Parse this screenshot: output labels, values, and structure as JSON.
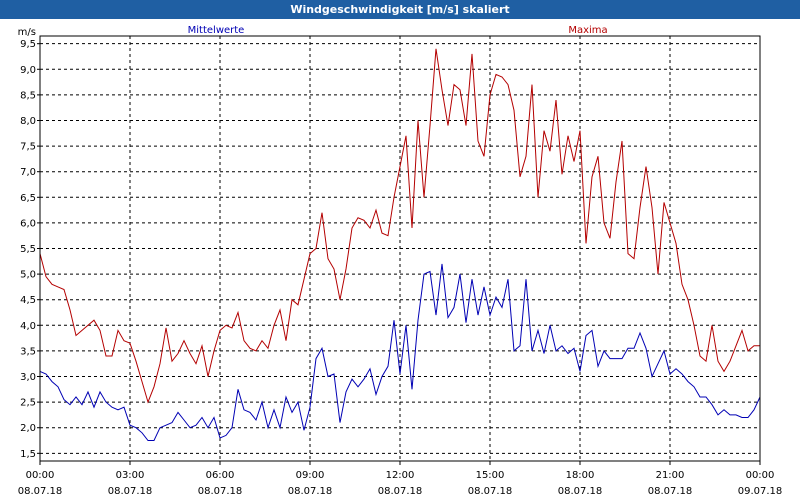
{
  "window": {
    "title": "Windgeschwindigkeit [m/s] skaliert"
  },
  "chart_data": {
    "type": "line",
    "title": "Windgeschwindigkeit [m/s] skaliert",
    "ylabel": "m/s",
    "xlabel": "",
    "ylim": [
      1.35,
      9.65
    ],
    "yticks": [
      "1,5",
      "2,0",
      "2,5",
      "3,0",
      "3,5",
      "4,0",
      "4,5",
      "5,0",
      "5,5",
      "6,0",
      "6,5",
      "7,0",
      "7,5",
      "8,0",
      "8,5",
      "9,0",
      "9,5"
    ],
    "xlim_hours": [
      0,
      24
    ],
    "xticks": [
      {
        "time": "00:00",
        "date": "08.07.18"
      },
      {
        "time": "03:00",
        "date": "08.07.18"
      },
      {
        "time": "06:00",
        "date": "08.07.18"
      },
      {
        "time": "09:00",
        "date": "08.07.18"
      },
      {
        "time": "12:00",
        "date": "08.07.18"
      },
      {
        "time": "15:00",
        "date": "08.07.18"
      },
      {
        "time": "18:00",
        "date": "08.07.18"
      },
      {
        "time": "21:00",
        "date": "08.07.18"
      },
      {
        "time": "00:00",
        "date": "09.07.18"
      }
    ],
    "grid": true,
    "legend": "top",
    "series": [
      {
        "name": "Mittelwerte",
        "color": "#0000b4",
        "points": [
          [
            0.0,
            3.1
          ],
          [
            0.2,
            3.05
          ],
          [
            0.4,
            2.9
          ],
          [
            0.6,
            2.8
          ],
          [
            0.8,
            2.55
          ],
          [
            1.0,
            2.45
          ],
          [
            1.2,
            2.6
          ],
          [
            1.4,
            2.45
          ],
          [
            1.6,
            2.7
          ],
          [
            1.8,
            2.4
          ],
          [
            2.0,
            2.7
          ],
          [
            2.2,
            2.5
          ],
          [
            2.4,
            2.4
          ],
          [
            2.6,
            2.35
          ],
          [
            2.8,
            2.4
          ],
          [
            3.0,
            2.05
          ],
          [
            3.2,
            2.0
          ],
          [
            3.4,
            1.9
          ],
          [
            3.6,
            1.75
          ],
          [
            3.8,
            1.75
          ],
          [
            4.0,
            2.0
          ],
          [
            4.2,
            2.05
          ],
          [
            4.4,
            2.1
          ],
          [
            4.6,
            2.3
          ],
          [
            4.8,
            2.15
          ],
          [
            5.0,
            2.0
          ],
          [
            5.2,
            2.05
          ],
          [
            5.4,
            2.2
          ],
          [
            5.6,
            2.0
          ],
          [
            5.8,
            2.2
          ],
          [
            6.0,
            1.8
          ],
          [
            6.2,
            1.85
          ],
          [
            6.4,
            2.0
          ],
          [
            6.6,
            2.75
          ],
          [
            6.8,
            2.35
          ],
          [
            7.0,
            2.3
          ],
          [
            7.2,
            2.15
          ],
          [
            7.4,
            2.5
          ],
          [
            7.6,
            2.0
          ],
          [
            7.8,
            2.35
          ],
          [
            8.0,
            2.0
          ],
          [
            8.2,
            2.6
          ],
          [
            8.4,
            2.3
          ],
          [
            8.6,
            2.5
          ],
          [
            8.8,
            1.95
          ],
          [
            9.0,
            2.4
          ],
          [
            9.2,
            3.35
          ],
          [
            9.4,
            3.55
          ],
          [
            9.6,
            3.0
          ],
          [
            9.8,
            3.05
          ],
          [
            10.0,
            2.1
          ],
          [
            10.2,
            2.7
          ],
          [
            10.4,
            2.95
          ],
          [
            10.6,
            2.8
          ],
          [
            10.8,
            2.95
          ],
          [
            11.0,
            3.15
          ],
          [
            11.2,
            2.65
          ],
          [
            11.4,
            3.0
          ],
          [
            11.6,
            3.2
          ],
          [
            11.8,
            4.1
          ],
          [
            12.0,
            3.05
          ],
          [
            12.2,
            4.0
          ],
          [
            12.4,
            2.75
          ],
          [
            12.6,
            4.1
          ],
          [
            12.8,
            5.0
          ],
          [
            13.0,
            5.05
          ],
          [
            13.2,
            4.2
          ],
          [
            13.4,
            5.2
          ],
          [
            13.6,
            4.15
          ],
          [
            13.8,
            4.35
          ],
          [
            14.0,
            5.0
          ],
          [
            14.2,
            4.05
          ],
          [
            14.4,
            4.9
          ],
          [
            14.6,
            4.2
          ],
          [
            14.8,
            4.75
          ],
          [
            15.0,
            4.2
          ],
          [
            15.2,
            4.55
          ],
          [
            15.4,
            4.35
          ],
          [
            15.6,
            4.9
          ],
          [
            15.8,
            3.5
          ],
          [
            16.0,
            3.6
          ],
          [
            16.2,
            4.9
          ],
          [
            16.4,
            3.5
          ],
          [
            16.6,
            3.9
          ],
          [
            16.8,
            3.45
          ],
          [
            17.0,
            4.0
          ],
          [
            17.2,
            3.5
          ],
          [
            17.4,
            3.6
          ],
          [
            17.6,
            3.45
          ],
          [
            17.8,
            3.55
          ],
          [
            18.0,
            3.1
          ],
          [
            18.2,
            3.8
          ],
          [
            18.4,
            3.9
          ],
          [
            18.6,
            3.2
          ],
          [
            18.8,
            3.5
          ],
          [
            19.0,
            3.35
          ],
          [
            19.2,
            3.35
          ],
          [
            19.4,
            3.35
          ],
          [
            19.6,
            3.55
          ],
          [
            19.8,
            3.55
          ],
          [
            20.0,
            3.85
          ],
          [
            20.2,
            3.55
          ],
          [
            20.4,
            3.0
          ],
          [
            20.6,
            3.25
          ],
          [
            20.8,
            3.5
          ],
          [
            21.0,
            3.05
          ],
          [
            21.2,
            3.15
          ],
          [
            21.4,
            3.05
          ],
          [
            21.6,
            2.9
          ],
          [
            21.8,
            2.8
          ],
          [
            22.0,
            2.6
          ],
          [
            22.2,
            2.6
          ],
          [
            22.4,
            2.45
          ],
          [
            22.6,
            2.25
          ],
          [
            22.8,
            2.35
          ],
          [
            23.0,
            2.25
          ],
          [
            23.2,
            2.25
          ],
          [
            23.4,
            2.2
          ],
          [
            23.6,
            2.2
          ],
          [
            23.8,
            2.35
          ],
          [
            24.0,
            2.6
          ]
        ]
      },
      {
        "name": "Maxima",
        "color": "#b40000",
        "points": [
          [
            0.0,
            5.4
          ],
          [
            0.2,
            4.95
          ],
          [
            0.4,
            4.8
          ],
          [
            0.6,
            4.75
          ],
          [
            0.8,
            4.7
          ],
          [
            1.0,
            4.3
          ],
          [
            1.2,
            3.8
          ],
          [
            1.4,
            3.9
          ],
          [
            1.6,
            4.0
          ],
          [
            1.8,
            4.1
          ],
          [
            2.0,
            3.9
          ],
          [
            2.2,
            3.4
          ],
          [
            2.4,
            3.4
          ],
          [
            2.6,
            3.9
          ],
          [
            2.8,
            3.7
          ],
          [
            3.0,
            3.65
          ],
          [
            3.2,
            3.3
          ],
          [
            3.4,
            2.9
          ],
          [
            3.6,
            2.5
          ],
          [
            3.8,
            2.8
          ],
          [
            4.0,
            3.25
          ],
          [
            4.2,
            3.95
          ],
          [
            4.4,
            3.3
          ],
          [
            4.6,
            3.45
          ],
          [
            4.8,
            3.7
          ],
          [
            5.0,
            3.45
          ],
          [
            5.2,
            3.25
          ],
          [
            5.4,
            3.6
          ],
          [
            5.6,
            3.0
          ],
          [
            5.8,
            3.5
          ],
          [
            6.0,
            3.9
          ],
          [
            6.2,
            4.0
          ],
          [
            6.4,
            3.95
          ],
          [
            6.6,
            4.25
          ],
          [
            6.8,
            3.7
          ],
          [
            7.0,
            3.55
          ],
          [
            7.2,
            3.5
          ],
          [
            7.4,
            3.7
          ],
          [
            7.6,
            3.55
          ],
          [
            7.8,
            4.0
          ],
          [
            8.0,
            4.3
          ],
          [
            8.2,
            3.7
          ],
          [
            8.4,
            4.5
          ],
          [
            8.6,
            4.4
          ],
          [
            8.8,
            4.9
          ],
          [
            9.0,
            5.4
          ],
          [
            9.2,
            5.5
          ],
          [
            9.4,
            6.2
          ],
          [
            9.6,
            5.3
          ],
          [
            9.8,
            5.1
          ],
          [
            10.0,
            4.5
          ],
          [
            10.2,
            5.1
          ],
          [
            10.4,
            5.9
          ],
          [
            10.6,
            6.1
          ],
          [
            10.8,
            6.05
          ],
          [
            11.0,
            5.9
          ],
          [
            11.2,
            6.25
          ],
          [
            11.4,
            5.8
          ],
          [
            11.6,
            5.75
          ],
          [
            11.8,
            6.5
          ],
          [
            12.0,
            7.1
          ],
          [
            12.2,
            7.7
          ],
          [
            12.4,
            5.9
          ],
          [
            12.6,
            8.0
          ],
          [
            12.8,
            6.5
          ],
          [
            13.0,
            7.9
          ],
          [
            13.2,
            9.4
          ],
          [
            13.4,
            8.6
          ],
          [
            13.6,
            7.9
          ],
          [
            13.8,
            8.7
          ],
          [
            14.0,
            8.6
          ],
          [
            14.2,
            7.9
          ],
          [
            14.4,
            9.3
          ],
          [
            14.6,
            7.6
          ],
          [
            14.8,
            7.3
          ],
          [
            15.0,
            8.5
          ],
          [
            15.2,
            8.9
          ],
          [
            15.4,
            8.85
          ],
          [
            15.6,
            8.7
          ],
          [
            15.8,
            8.2
          ],
          [
            16.0,
            6.9
          ],
          [
            16.2,
            7.3
          ],
          [
            16.4,
            8.7
          ],
          [
            16.6,
            6.5
          ],
          [
            16.8,
            7.8
          ],
          [
            17.0,
            7.4
          ],
          [
            17.2,
            8.4
          ],
          [
            17.4,
            6.95
          ],
          [
            17.6,
            7.7
          ],
          [
            17.8,
            7.2
          ],
          [
            18.0,
            7.8
          ],
          [
            18.2,
            5.6
          ],
          [
            18.4,
            6.9
          ],
          [
            18.6,
            7.3
          ],
          [
            18.8,
            6.0
          ],
          [
            19.0,
            5.7
          ],
          [
            19.2,
            6.8
          ],
          [
            19.4,
            7.6
          ],
          [
            19.6,
            5.4
          ],
          [
            19.8,
            5.3
          ],
          [
            20.0,
            6.3
          ],
          [
            20.2,
            7.1
          ],
          [
            20.4,
            6.3
          ],
          [
            20.6,
            5.0
          ],
          [
            20.8,
            6.4
          ],
          [
            21.0,
            6.0
          ],
          [
            21.2,
            5.6
          ],
          [
            21.4,
            4.8
          ],
          [
            21.6,
            4.5
          ],
          [
            21.8,
            4.0
          ],
          [
            22.0,
            3.4
          ],
          [
            22.2,
            3.3
          ],
          [
            22.4,
            4.0
          ],
          [
            22.6,
            3.3
          ],
          [
            22.8,
            3.1
          ],
          [
            23.0,
            3.3
          ],
          [
            23.2,
            3.6
          ],
          [
            23.4,
            3.9
          ],
          [
            23.6,
            3.5
          ],
          [
            23.8,
            3.6
          ],
          [
            24.0,
            3.6
          ]
        ]
      }
    ]
  }
}
